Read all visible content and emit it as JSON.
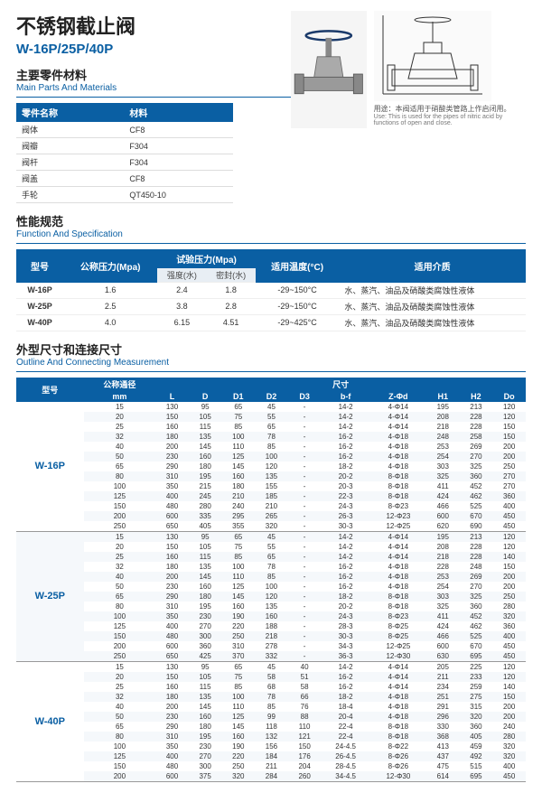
{
  "title": {
    "cn": "不锈钢截止阀",
    "model": "W-16P/25P/40P"
  },
  "use": {
    "cn": "用途：本阀适用于硝酸类管路上作启闭用。",
    "en": "Use: This is used for the pipes of nitric acid by functions of open and close."
  },
  "sections": {
    "parts": {
      "cn": "主要零件材料",
      "en": "Main Parts And Materials"
    },
    "spec": {
      "cn": "性能规范",
      "en": "Function And Specification"
    },
    "dim": {
      "cn": "外型尺寸和连接尺寸",
      "en": "Outline And Connecting Measurement"
    }
  },
  "partsCols": {
    "name": "零件名称",
    "mat": "材料"
  },
  "parts": [
    {
      "n": "阀体",
      "m": "CF8"
    },
    {
      "n": "阀瓣",
      "m": "F304"
    },
    {
      "n": "阀杆",
      "m": "F304"
    },
    {
      "n": "阀盖",
      "m": "CF8"
    },
    {
      "n": "手轮",
      "m": "QT450-10"
    }
  ],
  "specCols": {
    "model": "型号",
    "press": "公称压力(Mpa)",
    "test": "试验压力(Mpa)",
    "temp": "适用温度(°C)",
    "media": "适用介质",
    "strength": "强度(水)",
    "seal": "密封(水)"
  },
  "specs": [
    {
      "model": "W-16P",
      "np": "1.6",
      "st": "2.4",
      "se": "1.8",
      "t": "-29~150°C",
      "media": "水、蒸汽、油品及硝酸类腐蚀性液体"
    },
    {
      "model": "W-25P",
      "np": "2.5",
      "st": "3.8",
      "se": "2.8",
      "t": "-29~150°C",
      "media": "水、蒸汽、油品及硝酸类腐蚀性液体"
    },
    {
      "model": "W-40P",
      "np": "4.0",
      "st": "6.15",
      "se": "4.51",
      "t": "-29~425°C",
      "media": "水、蒸汽、油品及硝酸类腐蚀性液体"
    }
  ],
  "dimCols": {
    "model": "型号",
    "dn": "公称通径",
    "mm": "mm",
    "size": "尺寸",
    "L": "L",
    "D": "D",
    "D1": "D1",
    "D2": "D2",
    "D3": "D3",
    "bf": "b-f",
    "zd": "Z-Φd",
    "H1": "H1",
    "H2": "H2",
    "Do": "Do"
  },
  "dimGroups": [
    {
      "model": "W-16P",
      "rows": [
        {
          "mm": "15",
          "L": "130",
          "D": "95",
          "D1": "65",
          "D2": "45",
          "D3": "-",
          "bf": "14-2",
          "zd": "4-Φ14",
          "H1": "195",
          "H2": "213",
          "Do": "120"
        },
        {
          "mm": "20",
          "L": "150",
          "D": "105",
          "D1": "75",
          "D2": "55",
          "D3": "-",
          "bf": "14-2",
          "zd": "4-Φ14",
          "H1": "208",
          "H2": "228",
          "Do": "120"
        },
        {
          "mm": "25",
          "L": "160",
          "D": "115",
          "D1": "85",
          "D2": "65",
          "D3": "-",
          "bf": "14-2",
          "zd": "4-Φ14",
          "H1": "218",
          "H2": "228",
          "Do": "150"
        },
        {
          "mm": "32",
          "L": "180",
          "D": "135",
          "D1": "100",
          "D2": "78",
          "D3": "-",
          "bf": "16-2",
          "zd": "4-Φ18",
          "H1": "248",
          "H2": "258",
          "Do": "150"
        },
        {
          "mm": "40",
          "L": "200",
          "D": "145",
          "D1": "110",
          "D2": "85",
          "D3": "-",
          "bf": "16-2",
          "zd": "4-Φ18",
          "H1": "253",
          "H2": "269",
          "Do": "200"
        },
        {
          "mm": "50",
          "L": "230",
          "D": "160",
          "D1": "125",
          "D2": "100",
          "D3": "-",
          "bf": "16-2",
          "zd": "4-Φ18",
          "H1": "254",
          "H2": "270",
          "Do": "200"
        },
        {
          "mm": "65",
          "L": "290",
          "D": "180",
          "D1": "145",
          "D2": "120",
          "D3": "-",
          "bf": "18-2",
          "zd": "4-Φ18",
          "H1": "303",
          "H2": "325",
          "Do": "250"
        },
        {
          "mm": "80",
          "L": "310",
          "D": "195",
          "D1": "160",
          "D2": "135",
          "D3": "-",
          "bf": "20-2",
          "zd": "8-Φ18",
          "H1": "325",
          "H2": "360",
          "Do": "270"
        },
        {
          "mm": "100",
          "L": "350",
          "D": "215",
          "D1": "180",
          "D2": "155",
          "D3": "-",
          "bf": "20-3",
          "zd": "8-Φ18",
          "H1": "411",
          "H2": "452",
          "Do": "270"
        },
        {
          "mm": "125",
          "L": "400",
          "D": "245",
          "D1": "210",
          "D2": "185",
          "D3": "-",
          "bf": "22-3",
          "zd": "8-Φ18",
          "H1": "424",
          "H2": "462",
          "Do": "360"
        },
        {
          "mm": "150",
          "L": "480",
          "D": "280",
          "D1": "240",
          "D2": "210",
          "D3": "-",
          "bf": "24-3",
          "zd": "8-Φ23",
          "H1": "466",
          "H2": "525",
          "Do": "400"
        },
        {
          "mm": "200",
          "L": "600",
          "D": "335",
          "D1": "295",
          "D2": "265",
          "D3": "-",
          "bf": "26-3",
          "zd": "12-Φ23",
          "H1": "600",
          "H2": "670",
          "Do": "450"
        },
        {
          "mm": "250",
          "L": "650",
          "D": "405",
          "D1": "355",
          "D2": "320",
          "D3": "-",
          "bf": "30-3",
          "zd": "12-Φ25",
          "H1": "620",
          "H2": "690",
          "Do": "450"
        }
      ]
    },
    {
      "model": "W-25P",
      "rows": [
        {
          "mm": "15",
          "L": "130",
          "D": "95",
          "D1": "65",
          "D2": "45",
          "D3": "-",
          "bf": "14-2",
          "zd": "4-Φ14",
          "H1": "195",
          "H2": "213",
          "Do": "120"
        },
        {
          "mm": "20",
          "L": "150",
          "D": "105",
          "D1": "75",
          "D2": "55",
          "D3": "-",
          "bf": "14-2",
          "zd": "4-Φ14",
          "H1": "208",
          "H2": "228",
          "Do": "120"
        },
        {
          "mm": "25",
          "L": "160",
          "D": "115",
          "D1": "85",
          "D2": "65",
          "D3": "-",
          "bf": "14-2",
          "zd": "4-Φ14",
          "H1": "218",
          "H2": "228",
          "Do": "140"
        },
        {
          "mm": "32",
          "L": "180",
          "D": "135",
          "D1": "100",
          "D2": "78",
          "D3": "-",
          "bf": "16-2",
          "zd": "4-Φ18",
          "H1": "228",
          "H2": "248",
          "Do": "150"
        },
        {
          "mm": "40",
          "L": "200",
          "D": "145",
          "D1": "110",
          "D2": "85",
          "D3": "-",
          "bf": "16-2",
          "zd": "4-Φ18",
          "H1": "253",
          "H2": "269",
          "Do": "200"
        },
        {
          "mm": "50",
          "L": "230",
          "D": "160",
          "D1": "125",
          "D2": "100",
          "D3": "-",
          "bf": "16-2",
          "zd": "4-Φ18",
          "H1": "254",
          "H2": "270",
          "Do": "200"
        },
        {
          "mm": "65",
          "L": "290",
          "D": "180",
          "D1": "145",
          "D2": "120",
          "D3": "-",
          "bf": "18-2",
          "zd": "8-Φ18",
          "H1": "303",
          "H2": "325",
          "Do": "250"
        },
        {
          "mm": "80",
          "L": "310",
          "D": "195",
          "D1": "160",
          "D2": "135",
          "D3": "-",
          "bf": "20-2",
          "zd": "8-Φ18",
          "H1": "325",
          "H2": "360",
          "Do": "280"
        },
        {
          "mm": "100",
          "L": "350",
          "D": "230",
          "D1": "190",
          "D2": "160",
          "D3": "-",
          "bf": "24-3",
          "zd": "8-Φ23",
          "H1": "411",
          "H2": "452",
          "Do": "320"
        },
        {
          "mm": "125",
          "L": "400",
          "D": "270",
          "D1": "220",
          "D2": "188",
          "D3": "-",
          "bf": "28-3",
          "zd": "8-Φ25",
          "H1": "424",
          "H2": "462",
          "Do": "360"
        },
        {
          "mm": "150",
          "L": "480",
          "D": "300",
          "D1": "250",
          "D2": "218",
          "D3": "-",
          "bf": "30-3",
          "zd": "8-Φ25",
          "H1": "466",
          "H2": "525",
          "Do": "400"
        },
        {
          "mm": "200",
          "L": "600",
          "D": "360",
          "D1": "310",
          "D2": "278",
          "D3": "-",
          "bf": "34-3",
          "zd": "12-Φ25",
          "H1": "600",
          "H2": "670",
          "Do": "450"
        },
        {
          "mm": "250",
          "L": "650",
          "D": "425",
          "D1": "370",
          "D2": "332",
          "D3": "-",
          "bf": "36-3",
          "zd": "12-Φ30",
          "H1": "630",
          "H2": "695",
          "Do": "450"
        }
      ]
    },
    {
      "model": "W-40P",
      "rows": [
        {
          "mm": "15",
          "L": "130",
          "D": "95",
          "D1": "65",
          "D2": "45",
          "D3": "40",
          "bf": "14-2",
          "zd": "4-Φ14",
          "H1": "205",
          "H2": "225",
          "Do": "120"
        },
        {
          "mm": "20",
          "L": "150",
          "D": "105",
          "D1": "75",
          "D2": "58",
          "D3": "51",
          "bf": "16-2",
          "zd": "4-Φ14",
          "H1": "211",
          "H2": "233",
          "Do": "120"
        },
        {
          "mm": "25",
          "L": "160",
          "D": "115",
          "D1": "85",
          "D2": "68",
          "D3": "58",
          "bf": "16-2",
          "zd": "4-Φ14",
          "H1": "234",
          "H2": "259",
          "Do": "140"
        },
        {
          "mm": "32",
          "L": "180",
          "D": "135",
          "D1": "100",
          "D2": "78",
          "D3": "66",
          "bf": "18-2",
          "zd": "4-Φ18",
          "H1": "251",
          "H2": "275",
          "Do": "150"
        },
        {
          "mm": "40",
          "L": "200",
          "D": "145",
          "D1": "110",
          "D2": "85",
          "D3": "76",
          "bf": "18-4",
          "zd": "4-Φ18",
          "H1": "291",
          "H2": "315",
          "Do": "200"
        },
        {
          "mm": "50",
          "L": "230",
          "D": "160",
          "D1": "125",
          "D2": "99",
          "D3": "88",
          "bf": "20-4",
          "zd": "4-Φ18",
          "H1": "296",
          "H2": "320",
          "Do": "200"
        },
        {
          "mm": "65",
          "L": "290",
          "D": "180",
          "D1": "145",
          "D2": "118",
          "D3": "110",
          "bf": "22-4",
          "zd": "8-Φ18",
          "H1": "330",
          "H2": "360",
          "Do": "240"
        },
        {
          "mm": "80",
          "L": "310",
          "D": "195",
          "D1": "160",
          "D2": "132",
          "D3": "121",
          "bf": "22-4",
          "zd": "8-Φ18",
          "H1": "368",
          "H2": "405",
          "Do": "280"
        },
        {
          "mm": "100",
          "L": "350",
          "D": "230",
          "D1": "190",
          "D2": "156",
          "D3": "150",
          "bf": "24-4.5",
          "zd": "8-Φ22",
          "H1": "413",
          "H2": "459",
          "Do": "320"
        },
        {
          "mm": "125",
          "L": "400",
          "D": "270",
          "D1": "220",
          "D2": "184",
          "D3": "176",
          "bf": "26-4.5",
          "zd": "8-Φ26",
          "H1": "437",
          "H2": "492",
          "Do": "320"
        },
        {
          "mm": "150",
          "L": "480",
          "D": "300",
          "D1": "250",
          "D2": "211",
          "D3": "204",
          "bf": "28-4.5",
          "zd": "8-Φ26",
          "H1": "475",
          "H2": "515",
          "Do": "400"
        },
        {
          "mm": "200",
          "L": "600",
          "D": "375",
          "D1": "320",
          "D2": "284",
          "D3": "260",
          "bf": "34-4.5",
          "zd": "12-Φ30",
          "H1": "614",
          "H2": "695",
          "Do": "450"
        }
      ]
    }
  ]
}
